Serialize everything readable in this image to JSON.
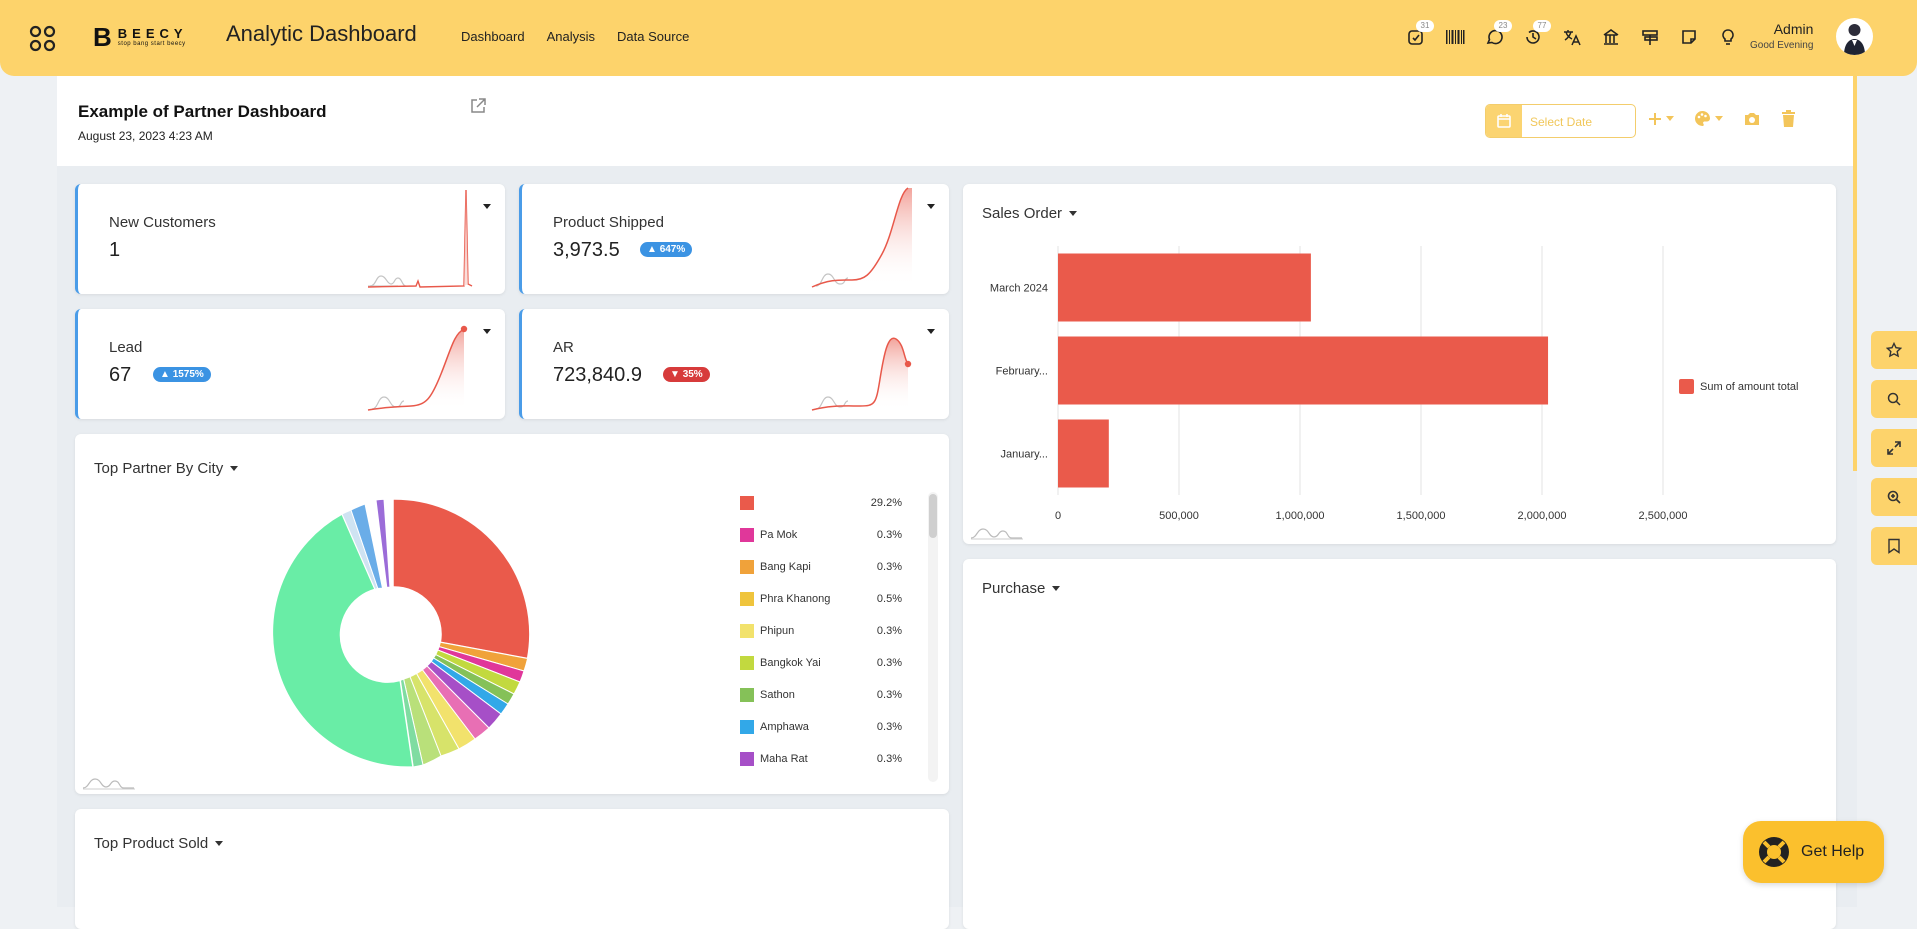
{
  "topbar": {
    "brand_letter": "B",
    "brand_name": "BEECY",
    "brand_tagline": "stop bang start beecy",
    "app_title": "Analytic Dashboard",
    "nav": [
      "Dashboard",
      "Analysis",
      "Data Source"
    ],
    "icons": [
      {
        "name": "activity-icon",
        "badge": "31"
      },
      {
        "name": "barcode-icon",
        "badge": ""
      },
      {
        "name": "chat-icon",
        "badge": "23"
      },
      {
        "name": "history-icon",
        "badge": "77"
      },
      {
        "name": "translate-icon",
        "badge": ""
      },
      {
        "name": "bank-icon",
        "badge": ""
      },
      {
        "name": "signpost-icon",
        "badge": ""
      },
      {
        "name": "note-icon",
        "badge": ""
      },
      {
        "name": "lightbulb-icon",
        "badge": ""
      }
    ],
    "user_name": "Admin",
    "greeting": "Good Evening"
  },
  "header": {
    "title": "Example of Partner Dashboard",
    "date": "August 23, 2023 4:23 AM",
    "date_placeholder": "Select Date"
  },
  "kpis": [
    {
      "label": "New Customers",
      "value": "1",
      "badge": "",
      "direction": "up"
    },
    {
      "label": "Product Shipped",
      "value": "3,973.5",
      "badge": "647%",
      "direction": "up"
    },
    {
      "label": "Lead",
      "value": "67",
      "badge": "1575%",
      "direction": "up"
    },
    {
      "label": "AR",
      "value": "723,840.9",
      "badge": "35%",
      "direction": "down"
    }
  ],
  "pie": {
    "title": "Top Partner By City",
    "legend": [
      {
        "name": "",
        "pct": "29.2%",
        "color": "#ea5a4b"
      },
      {
        "name": "Pa Mok",
        "pct": "0.3%",
        "color": "#e0379a"
      },
      {
        "name": "Bang Kapi",
        "pct": "0.3%",
        "color": "#f0a23a"
      },
      {
        "name": "Phra Khanong",
        "pct": "0.5%",
        "color": "#efc43c"
      },
      {
        "name": "Phipun",
        "pct": "0.3%",
        "color": "#f2e26c"
      },
      {
        "name": "Bangkok Yai",
        "pct": "0.3%",
        "color": "#c2d93f"
      },
      {
        "name": "Sathon",
        "pct": "0.3%",
        "color": "#85c158"
      },
      {
        "name": "Amphawa",
        "pct": "0.3%",
        "color": "#32a8e8"
      },
      {
        "name": "Maha Rat",
        "pct": "0.3%",
        "color": "#a64fc7"
      }
    ]
  },
  "sales_order": {
    "title": "Sales Order",
    "legend": "Sum of amount total"
  },
  "chart_data": {
    "type": "bar",
    "orientation": "horizontal",
    "categories": [
      "March 2024",
      "February...",
      "January..."
    ],
    "series": [
      {
        "name": "Sum of amount total",
        "values": [
          1045000,
          2025000,
          210000
        ]
      }
    ],
    "xlim": [
      0,
      2500000
    ],
    "xticks": [
      "0",
      "500,000",
      "1,000,000",
      "1,500,000",
      "2,000,000",
      "2,500,000"
    ],
    "grid": true,
    "legend_position": "right",
    "color": "#ea5a4b"
  },
  "purchase": {
    "title": "Purchase"
  },
  "top_product": {
    "title": "Top Product Sold"
  },
  "side_tabs": [
    "star-icon",
    "search-icon",
    "expand-icon",
    "zoom-in-icon",
    "bookmark-icon"
  ],
  "help": {
    "label": "Get Help"
  }
}
